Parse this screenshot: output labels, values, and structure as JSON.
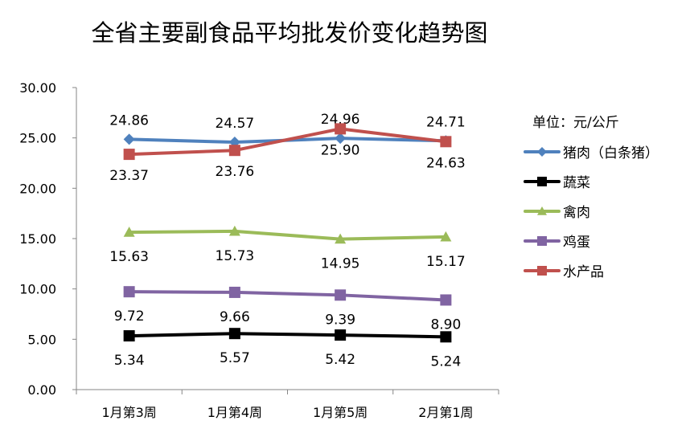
{
  "chart_data": {
    "type": "line",
    "title": "全省主要副食品平均批发价变化趋势图",
    "unit_label": "单位：元/公斤",
    "categories": [
      "1月第3周",
      "1月第4周",
      "1月第5周",
      "2月第1周"
    ],
    "ylim": [
      0,
      30
    ],
    "yticks": [
      "0.00",
      "5.00",
      "10.00",
      "15.00",
      "20.00",
      "25.00",
      "30.00"
    ],
    "grid": false,
    "legend_position": "right",
    "series": [
      {
        "name": "猪肉（白条猪）",
        "color": "#4F81BD",
        "marker": "diamond",
        "values": [
          24.86,
          24.57,
          24.96,
          24.71
        ],
        "labels": [
          "24.86",
          "24.57",
          "24.96",
          "24.71"
        ],
        "label_pos": "above"
      },
      {
        "name": "蔬菜",
        "color": "#000000",
        "marker": "square",
        "values": [
          5.34,
          5.57,
          5.42,
          5.24
        ],
        "labels": [
          "5.34",
          "5.57",
          "5.42",
          "5.24"
        ],
        "label_pos": "below"
      },
      {
        "name": "禽肉",
        "color": "#9BBB59",
        "marker": "triangle",
        "values": [
          15.63,
          15.73,
          14.95,
          15.17
        ],
        "labels": [
          "15.63",
          "15.73",
          "14.95",
          "15.17"
        ],
        "label_pos": "below"
      },
      {
        "name": "鸡蛋",
        "color": "#8064A2",
        "marker": "square",
        "values": [
          9.72,
          9.66,
          9.39,
          8.9
        ],
        "labels": [
          "9.72",
          "9.66",
          "9.39",
          "8.90"
        ],
        "label_pos": "below"
      },
      {
        "name": "水产品",
        "color": "#C0504D",
        "marker": "square",
        "values": [
          23.37,
          23.76,
          25.9,
          24.63
        ],
        "labels": [
          "23.37",
          "23.76",
          "25.90",
          "24.63"
        ],
        "label_pos": "below"
      }
    ]
  }
}
